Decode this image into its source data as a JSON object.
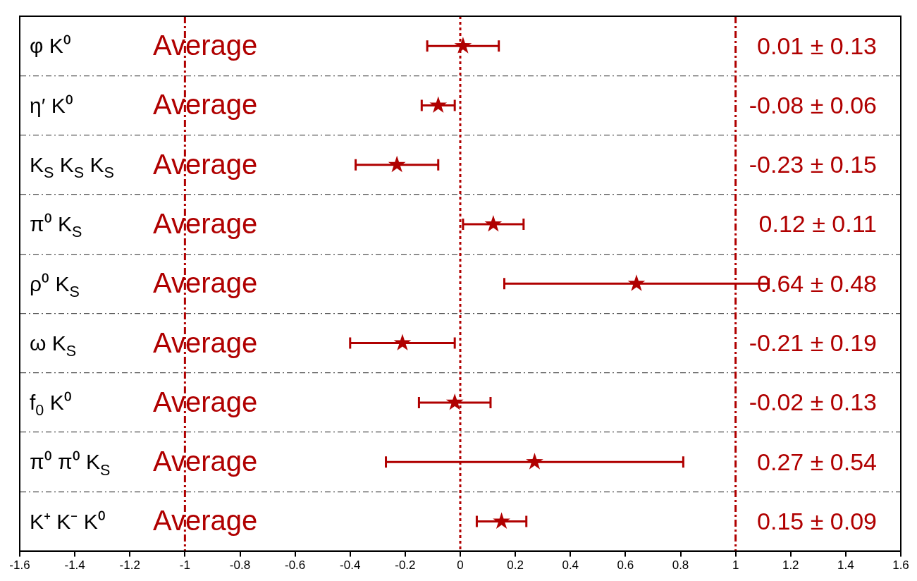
{
  "chart_data": {
    "type": "scatter",
    "orientation": "horizontal",
    "categories": [
      "φ K⁰",
      "η′ K⁰",
      "K$_{S}$ K$_{S}$ K$_{S}$",
      "π⁰ K$_{S}$",
      "ρ⁰ K$_{S}$",
      "ω K$_{S}$",
      "f$_{0}$ K⁰",
      "π⁰ π⁰ K$_{S}$",
      "K⁺ K⁻ K⁰"
    ],
    "series": [
      {
        "color": "#b00000",
        "marker": "star",
        "values": [
          0.01,
          -0.08,
          -0.23,
          0.12,
          0.64,
          -0.21,
          -0.02,
          0.27,
          0.15
        ],
        "errors": [
          0.13,
          0.06,
          0.15,
          0.11,
          0.48,
          0.19,
          0.13,
          0.54,
          0.09
        ]
      }
    ],
    "annotations": [
      "Average",
      "0.01 ± 0.13",
      "Average",
      "-0.08 ± 0.06",
      "Average",
      "-0.23 ± 0.15",
      "Average",
      "0.12 ± 0.11",
      "Average",
      "0.64 ± 0.48",
      "Average",
      "-0.21 ± 0.19",
      "Average",
      "-0.02 ± 0.13",
      "Average",
      "0.27 ± 0.54",
      "Average",
      "0.15 ± 0.09"
    ],
    "ref_lines": [
      {
        "axis": "x",
        "value": -1,
        "color": "#b00000",
        "line_style": "dashed"
      },
      {
        "axis": "x",
        "value": 0,
        "color": "#b00000",
        "line_style": "dotted"
      },
      {
        "axis": "x",
        "value": 1,
        "color": "#b00000",
        "line_style": "dashed"
      }
    ],
    "xlim": [
      -1.6,
      1.6
    ],
    "xticks": [
      -1.6,
      -1.4,
      -1.2,
      -1,
      -0.8,
      -0.6,
      -0.4,
      -0.2,
      0,
      0.2,
      0.4,
      0.6,
      0.8,
      1,
      1.2,
      1.4,
      1.6
    ],
    "grid": "y",
    "legend": false
  }
}
